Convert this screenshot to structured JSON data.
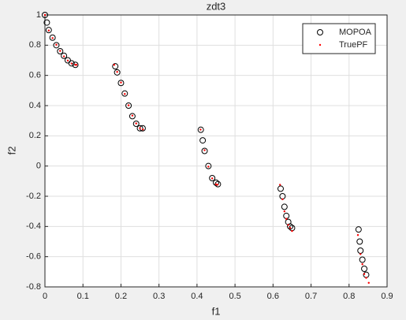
{
  "chart_data": {
    "type": "scatter",
    "title": "zdt3",
    "x_label": "f1",
    "y_label": "f2",
    "xlim": [
      0,
      0.9
    ],
    "xticks": [
      0,
      0.1,
      0.2,
      0.3,
      0.4,
      0.5,
      0.6,
      0.7,
      0.8,
      0.9
    ],
    "ylim": [
      -0.8,
      1
    ],
    "yticks": [
      -0.8,
      -0.6,
      -0.4,
      -0.2,
      0,
      0.2,
      0.4,
      0.6,
      0.8,
      1
    ],
    "grid": true,
    "legend": "top-right",
    "series": [
      {
        "name": "MOPOA",
        "color": "#000000",
        "marker": "circle",
        "x": [
          0,
          0.005,
          0.01,
          0.02,
          0.03,
          0.04,
          0.05,
          0.06,
          0.07,
          0.08,
          0.185,
          0.19,
          0.2,
          0.21,
          0.22,
          0.23,
          0.24,
          0.25,
          0.257,
          0.41,
          0.415,
          0.42,
          0.43,
          0.44,
          0.45,
          0.455,
          0.62,
          0.625,
          0.63,
          0.635,
          0.64,
          0.645,
          0.65,
          0.825,
          0.828,
          0.83,
          0.835,
          0.84,
          0.845
        ],
        "values": [
          1,
          0.95,
          0.9,
          0.85,
          0.8,
          0.76,
          0.73,
          0.7,
          0.68,
          0.67,
          0.66,
          0.62,
          0.55,
          0.48,
          0.4,
          0.33,
          0.28,
          0.25,
          0.25,
          0.24,
          0.17,
          0.1,
          0,
          -0.08,
          -0.11,
          -0.12,
          -0.15,
          -0.2,
          -0.27,
          -0.33,
          -0.37,
          -0.4,
          -0.41,
          -0.42,
          -0.5,
          -0.56,
          -0.62,
          -0.68,
          -0.72
        ]
      },
      {
        "name": "TruePF",
        "color": "#ff0000",
        "marker": "dot",
        "x": [
          0,
          0.01,
          0.02,
          0.03,
          0.04,
          0.05,
          0.06,
          0.07,
          0.08,
          0.083,
          0.1822,
          0.19,
          0.2,
          0.21,
          0.22,
          0.23,
          0.24,
          0.25,
          0.2578,
          0.4094,
          0.42,
          0.43,
          0.44,
          0.45,
          0.4539,
          0.6184,
          0.625,
          0.63,
          0.635,
          0.64,
          0.645,
          0.65,
          0.8233,
          0.83,
          0.835,
          0.84,
          0.845,
          0.8518
        ],
        "values": [
          1,
          0.897,
          0.847,
          0.803,
          0.762,
          0.726,
          0.698,
          0.679,
          0.67,
          0.67,
          0.67,
          0.623,
          0.553,
          0.477,
          0.402,
          0.334,
          0.282,
          0.25,
          0.242,
          0.241,
          0.105,
          -0.004,
          -0.082,
          -0.121,
          -0.124,
          -0.124,
          -0.22,
          -0.3,
          -0.35,
          -0.39,
          -0.41,
          -0.43,
          -0.457,
          -0.583,
          -0.65,
          -0.715,
          -0.74,
          -0.773
        ]
      }
    ]
  }
}
